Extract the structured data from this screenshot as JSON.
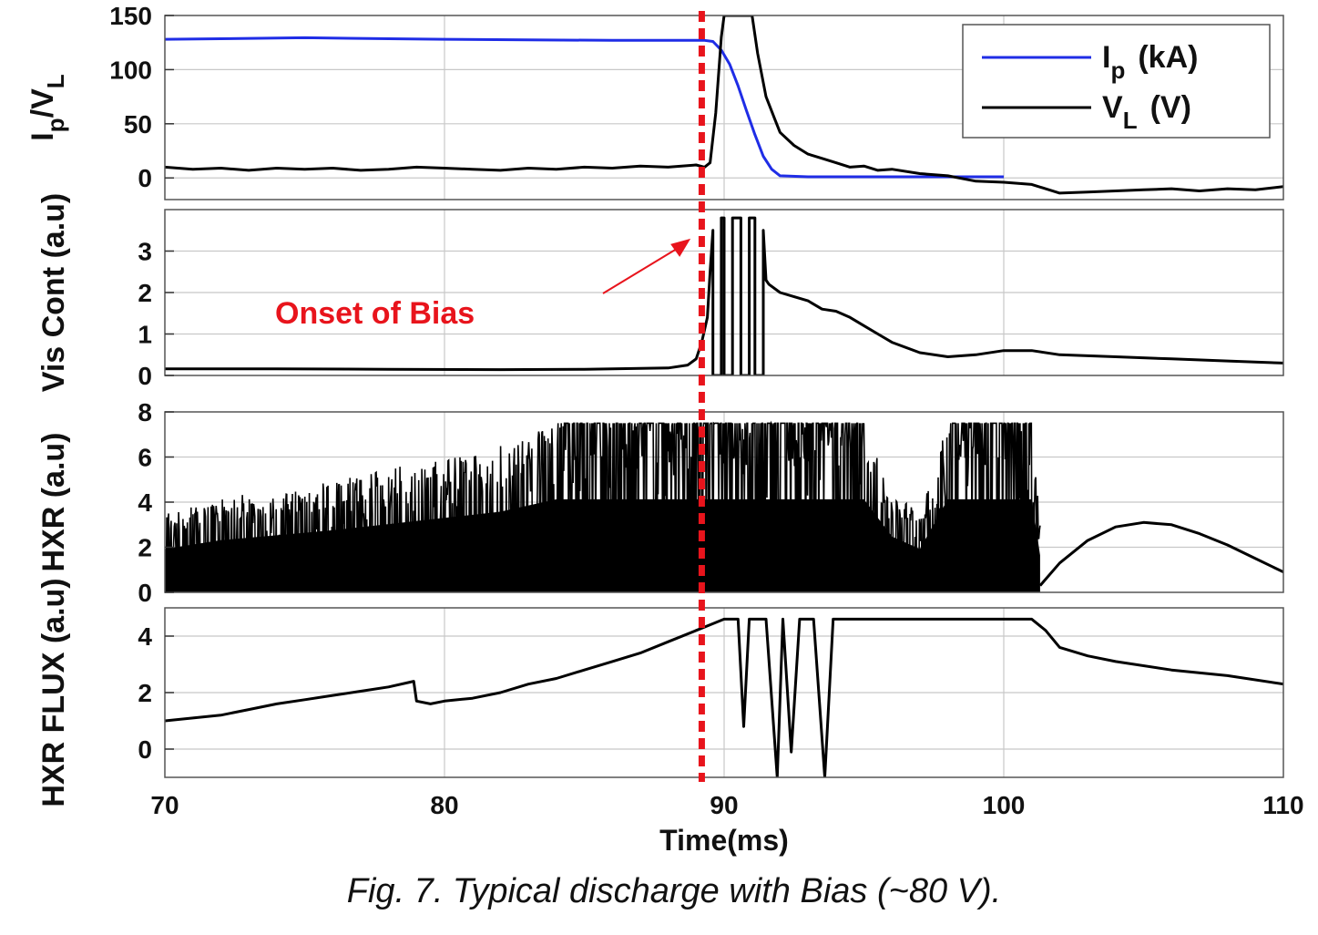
{
  "chart_data": [
    {
      "type": "line",
      "ylabel": "I_p/V_L",
      "ylabel_parts": {
        "a": "I",
        "a_sub": "p",
        "b": "/V",
        "b_sub": "L"
      },
      "ylim": [
        -20,
        150
      ],
      "yticks": [
        0,
        50,
        100,
        150
      ],
      "xlim": [
        70,
        110
      ],
      "grid": true,
      "legend_position": "top-right",
      "legend": [
        {
          "symbol": "I",
          "sub": "p",
          "unit": "(kA)",
          "color": "#1f2de6"
        },
        {
          "symbol": "V",
          "sub": "L",
          "unit": "(V)",
          "color": "#000000"
        }
      ],
      "series": [
        {
          "name": "Ip (kA)",
          "color": "#1f2de6",
          "x": [
            70,
            72,
            75,
            78,
            80,
            83,
            86,
            88,
            89.3,
            89.6,
            89.9,
            90.2,
            90.5,
            90.8,
            91.1,
            91.4,
            91.7,
            92,
            93,
            95,
            97,
            100
          ],
          "y": [
            128,
            128.5,
            129.5,
            128.5,
            128,
            127.5,
            127,
            127,
            127,
            126,
            118,
            105,
            85,
            62,
            40,
            20,
            8,
            2,
            1,
            1,
            1,
            1
          ]
        },
        {
          "name": "VL (V)",
          "color": "#000000",
          "x": [
            70,
            71,
            72,
            73,
            74,
            75,
            76,
            77,
            78,
            79,
            80,
            81,
            82,
            83,
            84,
            85,
            86,
            87,
            88,
            89,
            89.3,
            89.5,
            89.7,
            89.9,
            90,
            91,
            91.2,
            91.5,
            91.8,
            92,
            92.5,
            93,
            93.5,
            94,
            94.5,
            95,
            95.5,
            96,
            97,
            98,
            99,
            100,
            101,
            102,
            103,
            104,
            105,
            106,
            107,
            108,
            109,
            110
          ],
          "y": [
            10,
            8,
            9,
            7,
            9,
            8,
            9,
            7,
            8,
            10,
            9,
            8,
            7,
            9,
            8,
            10,
            9,
            11,
            10,
            12,
            10,
            14,
            60,
            130,
            150,
            150,
            115,
            75,
            55,
            42,
            30,
            22,
            18,
            14,
            10,
            11,
            7,
            8,
            4,
            2,
            -3,
            -4,
            -6,
            -14,
            -13,
            -12,
            -11,
            -10,
            -12,
            -10,
            -11,
            -8
          ]
        }
      ]
    },
    {
      "type": "line",
      "ylabel": "Vis Cont (a.u)",
      "ylim": [
        0,
        4
      ],
      "yticks": [
        0,
        1,
        2,
        3
      ],
      "xlim": [
        70,
        110
      ],
      "grid": true,
      "annotation": {
        "text": "Onset of Bias",
        "color": "#e8141c",
        "arrow_to_x": 88.8,
        "arrow_to_y": 3.3
      },
      "series": [
        {
          "name": "",
          "color": "#000000",
          "x": [
            70,
            74,
            78,
            82,
            85,
            88,
            88.7,
            89,
            89.2,
            89.4,
            89.5,
            89.6,
            89.6,
            89.9,
            89.9,
            90,
            90,
            90.3,
            90.3,
            90.6,
            90.6,
            90.9,
            90.9,
            91.1,
            91.1,
            91.4,
            91.4,
            91.5,
            91.6,
            92,
            92.5,
            93,
            93.5,
            94,
            94.5,
            95,
            95.5,
            96,
            97,
            98,
            99,
            100,
            101,
            102,
            104,
            106,
            108,
            110
          ],
          "y": [
            0.16,
            0.16,
            0.15,
            0.14,
            0.15,
            0.18,
            0.25,
            0.4,
            0.8,
            1.4,
            2.5,
            3.5,
            0.0,
            0.0,
            3.8,
            3.8,
            0.0,
            0.0,
            3.8,
            3.8,
            0.0,
            0.0,
            3.8,
            3.8,
            0.0,
            0.0,
            3.5,
            2.3,
            2.2,
            2.0,
            1.9,
            1.8,
            1.6,
            1.55,
            1.4,
            1.2,
            1.0,
            0.8,
            0.55,
            0.45,
            0.5,
            0.6,
            0.6,
            0.5,
            0.45,
            0.4,
            0.35,
            0.3
          ]
        }
      ]
    },
    {
      "type": "line",
      "ylabel": "HXR (a.u)",
      "ylim": [
        0,
        8
      ],
      "yticks": [
        0,
        2,
        4,
        6,
        8
      ],
      "xlim": [
        70,
        110
      ],
      "grid": true,
      "description": "dense noisy signal; envelope rises to saturation 7.5 near 84-89 ms; bursts until ~101 ms then smooth hump",
      "envelope": {
        "x": [
          70,
          72,
          74,
          76,
          78,
          80,
          82,
          84,
          85,
          88,
          89,
          90,
          91,
          92,
          93,
          94,
          95,
          96,
          97,
          98,
          99,
          100,
          101,
          101.3
        ],
        "upper": [
          3.5,
          4.2,
          4.6,
          5.0,
          5.5,
          6.0,
          6.5,
          7.5,
          7.5,
          7.5,
          7.5,
          7.5,
          7.5,
          7.5,
          7.5,
          7.5,
          7.5,
          4.5,
          3.5,
          7.5,
          7.5,
          7.5,
          7.5,
          3.0
        ],
        "lower": [
          0,
          0,
          0,
          0,
          0,
          0,
          0,
          0,
          0,
          0,
          0,
          0,
          0,
          0,
          0,
          0,
          0,
          0,
          0,
          0,
          0,
          0,
          0,
          0
        ]
      },
      "series": [
        {
          "name": "",
          "color": "#000000",
          "x": [
            101.3,
            102,
            103,
            104,
            105,
            106,
            107,
            108,
            109,
            110
          ],
          "y": [
            0.3,
            1.3,
            2.3,
            2.9,
            3.1,
            3.0,
            2.6,
            2.1,
            1.5,
            0.9
          ]
        }
      ]
    },
    {
      "type": "line",
      "ylabel": "HXR FLUX (a.u)",
      "ylim": [
        -1,
        5
      ],
      "yticks": [
        0,
        2,
        4
      ],
      "xlim": [
        70,
        110
      ],
      "xticks": [
        70,
        80,
        90,
        100,
        110
      ],
      "xlabel": "Time(ms)",
      "grid": true,
      "series": [
        {
          "name": "",
          "color": "#000000",
          "x": [
            70,
            71,
            72,
            73,
            74,
            75,
            76,
            77,
            78,
            78.9,
            79,
            79.5,
            80,
            81,
            82,
            83,
            84,
            85,
            86,
            87,
            88,
            89,
            89.5,
            90,
            90.5,
            90.7,
            90.9,
            91.2,
            91.5,
            91.9,
            92.1,
            92.4,
            92.7,
            92.9,
            93.2,
            93.6,
            93.9,
            94.2,
            95,
            97,
            99,
            100,
            101,
            101.5,
            102,
            103,
            104,
            106,
            108,
            110
          ],
          "y": [
            1.0,
            1.1,
            1.2,
            1.4,
            1.6,
            1.75,
            1.9,
            2.05,
            2.2,
            2.4,
            1.7,
            1.6,
            1.7,
            1.8,
            2.0,
            2.3,
            2.5,
            2.8,
            3.1,
            3.4,
            3.8,
            4.2,
            4.4,
            4.6,
            4.6,
            0.8,
            4.6,
            4.6,
            4.6,
            -1.0,
            4.6,
            -0.1,
            4.6,
            4.6,
            4.6,
            -1.0,
            4.6,
            4.6,
            4.6,
            4.6,
            4.6,
            4.6,
            4.6,
            4.2,
            3.6,
            3.3,
            3.1,
            2.8,
            2.6,
            2.3
          ]
        }
      ]
    }
  ],
  "bias_onset_ms": 89.2,
  "annotation_text": "Onset of Bias",
  "caption": "Fig. 7. Typical discharge with Bias (~80 V)."
}
